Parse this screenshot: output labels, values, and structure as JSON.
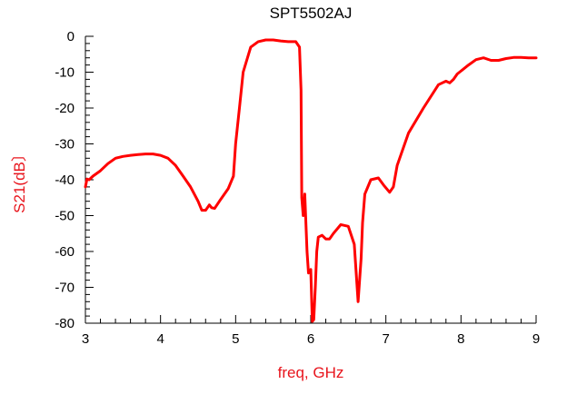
{
  "chart_data": {
    "type": "line",
    "title": "SPT5502AJ",
    "xlabel": "freq, GHz",
    "ylabel": "S21(dB〕",
    "xlim": [
      3,
      9
    ],
    "ylim": [
      -80,
      0
    ],
    "x_ticks": [
      3,
      4,
      5,
      6,
      7,
      8,
      9
    ],
    "y_ticks": [
      0,
      -10,
      -20,
      -30,
      -40,
      -50,
      -60,
      -70,
      -80
    ],
    "x_tick_labels": [
      "3",
      "4",
      "5",
      "6",
      "7",
      "8",
      "9"
    ],
    "y_tick_labels": [
      "0",
      "-10",
      "-20",
      "-30",
      "-40",
      "-50",
      "-60",
      "-70",
      "-80"
    ],
    "grid": false,
    "label_color": "#e8141c",
    "line_color": "#ff0000",
    "series": [
      {
        "x": [
          3.0,
          3.02,
          3.05,
          3.1,
          3.2,
          3.3,
          3.4,
          3.5,
          3.6,
          3.7,
          3.8,
          3.9,
          4.0,
          4.1,
          4.2,
          4.3,
          4.4,
          4.5,
          4.55,
          4.6,
          4.65,
          4.68,
          4.72,
          4.8,
          4.9,
          4.97,
          5.0,
          5.05,
          5.1,
          5.2,
          5.3,
          5.4,
          5.5,
          5.6,
          5.7,
          5.8,
          5.85,
          5.87,
          5.88,
          5.9,
          5.92,
          5.95,
          5.97,
          6.0,
          6.02,
          6.04,
          6.06,
          6.08,
          6.1,
          6.15,
          6.2,
          6.25,
          6.3,
          6.4,
          6.5,
          6.58,
          6.63,
          6.67,
          6.69,
          6.72,
          6.8,
          6.9,
          6.97,
          7.05,
          7.1,
          7.15,
          7.3,
          7.5,
          7.7,
          7.8,
          7.85,
          7.9,
          7.95,
          8.1,
          8.2,
          8.3,
          8.4,
          8.5,
          8.6,
          8.7,
          8.8,
          8.9,
          9.0
        ],
        "y": [
          -42,
          -39.8,
          -40,
          -39,
          -37.5,
          -35.5,
          -34,
          -33.5,
          -33.2,
          -33,
          -32.8,
          -32.8,
          -33.2,
          -34,
          -36,
          -39,
          -42,
          -46,
          -48.5,
          -48.5,
          -47,
          -47.8,
          -48,
          -45.5,
          -42.5,
          -39,
          -30,
          -20,
          -10,
          -3,
          -1.5,
          -1,
          -1,
          -1.3,
          -1.5,
          -1.5,
          -3,
          -15,
          -45,
          -50,
          -44,
          -60,
          -66,
          -65,
          -79.5,
          -79,
          -70,
          -60,
          -56,
          -55.5,
          -56.5,
          -56.5,
          -55,
          -52.5,
          -53,
          -58,
          -74,
          -62,
          -52,
          -44,
          -40,
          -39.5,
          -41.5,
          -43.5,
          -42,
          -36,
          -27,
          -20,
          -13.5,
          -12.5,
          -13,
          -12,
          -10.5,
          -8,
          -6.5,
          -6,
          -6.7,
          -6.7,
          -6.2,
          -5.9,
          -5.9,
          -6,
          -6
        ]
      }
    ]
  }
}
